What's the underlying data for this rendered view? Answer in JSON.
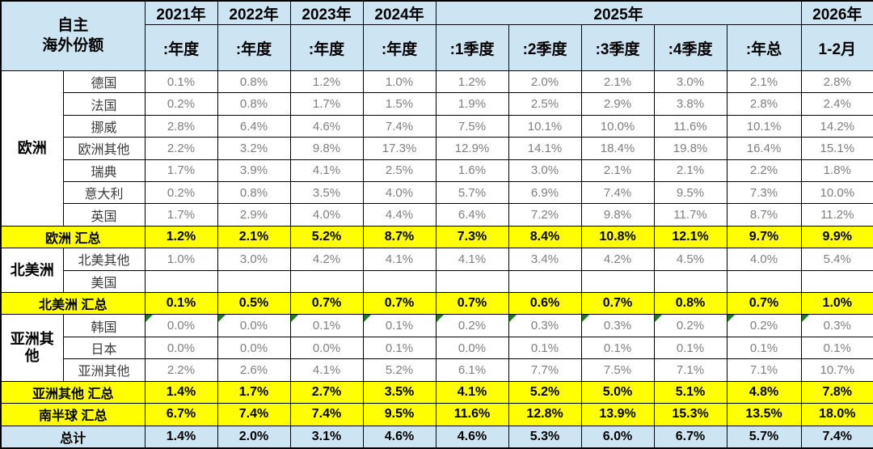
{
  "header": {
    "title": "自主\n海外份额",
    "year_groups": [
      {
        "label": "2021年",
        "colspan": 1
      },
      {
        "label": "2022年",
        "colspan": 1
      },
      {
        "label": "2023年",
        "colspan": 1
      },
      {
        "label": "2024年",
        "colspan": 1
      },
      {
        "label": "2025年",
        "colspan": 5
      },
      {
        "label": "2026年",
        "colspan": 1
      }
    ],
    "sub_headers": [
      ":年度",
      ":年度",
      ":年度",
      ":年度",
      ":1季度",
      ":2季度",
      ":3季度",
      ":4季度",
      ":年总",
      "1-2月"
    ]
  },
  "chart_data": {
    "type": "table",
    "title": "自主 海外份额",
    "columns": [
      "2021年:年度",
      "2022年:年度",
      "2023年:年度",
      "2024年:年度",
      "2025年:1季度",
      "2025年:2季度",
      "2025年:3季度",
      "2025年:4季度",
      "2025年:年总",
      "2026年1-2月"
    ],
    "rows": [
      {
        "kind": "country",
        "group": "欧洲",
        "group_rowspan": 7,
        "label": "德国",
        "values": [
          "0.1%",
          "0.8%",
          "1.2%",
          "1.0%",
          "1.2%",
          "2.0%",
          "2.1%",
          "3.0%",
          "2.1%",
          "2.8%"
        ]
      },
      {
        "kind": "country",
        "label": "法国",
        "values": [
          "0.2%",
          "0.8%",
          "1.7%",
          "1.5%",
          "1.9%",
          "2.5%",
          "2.9%",
          "3.8%",
          "2.8%",
          "2.4%"
        ]
      },
      {
        "kind": "country",
        "label": "挪威",
        "values": [
          "2.8%",
          "6.4%",
          "4.6%",
          "7.4%",
          "7.5%",
          "10.1%",
          "10.0%",
          "11.6%",
          "10.1%",
          "14.2%"
        ]
      },
      {
        "kind": "country",
        "label": "欧洲其他",
        "values": [
          "2.2%",
          "3.2%",
          "9.8%",
          "17.3%",
          "12.9%",
          "14.1%",
          "18.4%",
          "19.8%",
          "16.4%",
          "15.1%"
        ]
      },
      {
        "kind": "country",
        "label": "瑞典",
        "values": [
          "1.7%",
          "3.9%",
          "4.1%",
          "2.5%",
          "1.6%",
          "3.0%",
          "2.1%",
          "2.1%",
          "2.2%",
          "1.8%"
        ]
      },
      {
        "kind": "country",
        "label": "意大利",
        "values": [
          "0.2%",
          "0.8%",
          "3.5%",
          "4.0%",
          "5.7%",
          "6.9%",
          "7.4%",
          "9.5%",
          "7.3%",
          "10.0%"
        ]
      },
      {
        "kind": "country",
        "label": "英国",
        "values": [
          "1.7%",
          "2.9%",
          "4.0%",
          "4.4%",
          "6.4%",
          "7.2%",
          "9.8%",
          "11.7%",
          "8.7%",
          "11.2%"
        ]
      },
      {
        "kind": "summary",
        "label": "欧洲 汇总",
        "values": [
          "1.2%",
          "2.1%",
          "5.2%",
          "8.7%",
          "7.3%",
          "8.4%",
          "10.8%",
          "12.1%",
          "9.7%",
          "9.9%"
        ]
      },
      {
        "kind": "country",
        "group": "北美洲",
        "group_rowspan": 2,
        "label": "北美其他",
        "values": [
          "1.0%",
          "3.0%",
          "4.2%",
          "4.1%",
          "4.1%",
          "3.4%",
          "4.2%",
          "4.5%",
          "4.0%",
          "5.4%"
        ]
      },
      {
        "kind": "country",
        "label": "美国",
        "values": [
          "",
          "",
          "",
          "",
          "",
          "",
          "",
          "",
          "",
          ""
        ]
      },
      {
        "kind": "summary",
        "label": "北美洲 汇总",
        "values": [
          "0.1%",
          "0.5%",
          "0.7%",
          "0.7%",
          "0.7%",
          "0.6%",
          "0.7%",
          "0.8%",
          "0.7%",
          "1.0%"
        ]
      },
      {
        "kind": "country",
        "group": "亚洲其他",
        "group_rowspan": 3,
        "label": "韩国",
        "markers": true,
        "values": [
          "0.0%",
          "0.0%",
          "0.1%",
          "0.1%",
          "0.2%",
          "0.3%",
          "0.3%",
          "0.2%",
          "0.2%",
          "0.3%"
        ]
      },
      {
        "kind": "country",
        "label": "日本",
        "values": [
          "0.0%",
          "0.0%",
          "0.0%",
          "0.1%",
          "0.0%",
          "0.1%",
          "0.1%",
          "0.1%",
          "0.1%",
          "0.1%"
        ]
      },
      {
        "kind": "country",
        "label": "亚洲其他",
        "values": [
          "2.2%",
          "2.6%",
          "4.1%",
          "5.2%",
          "6.1%",
          "7.7%",
          "7.5%",
          "7.1%",
          "7.1%",
          "10.7%"
        ]
      },
      {
        "kind": "summary",
        "label": "亚洲其他 汇总",
        "values": [
          "1.4%",
          "1.7%",
          "2.7%",
          "3.5%",
          "4.1%",
          "5.2%",
          "5.0%",
          "5.1%",
          "4.8%",
          "7.8%"
        ]
      },
      {
        "kind": "summary",
        "label": "南半球 汇总",
        "values": [
          "6.7%",
          "7.4%",
          "7.4%",
          "9.5%",
          "11.6%",
          "12.8%",
          "13.9%",
          "15.3%",
          "13.5%",
          "18.0%"
        ]
      },
      {
        "kind": "total",
        "label": "总计",
        "values": [
          "1.4%",
          "2.0%",
          "3.1%",
          "4.6%",
          "4.6%",
          "5.3%",
          "6.0%",
          "6.7%",
          "5.7%",
          "7.4%"
        ]
      }
    ]
  },
  "annotations": {
    "comment_marker_row": "韩国",
    "comment_marker_shape": "green top-left corner triangle on each value cell"
  },
  "colors": {
    "header_bg": "#cde5f2",
    "summary_bg": "#ffff00",
    "total_bg": "#cde5f2",
    "border": "#000000",
    "value_text": "#7f7f7f",
    "country_text": "#3c3c3c",
    "marker_green": "#1e7e1e"
  }
}
